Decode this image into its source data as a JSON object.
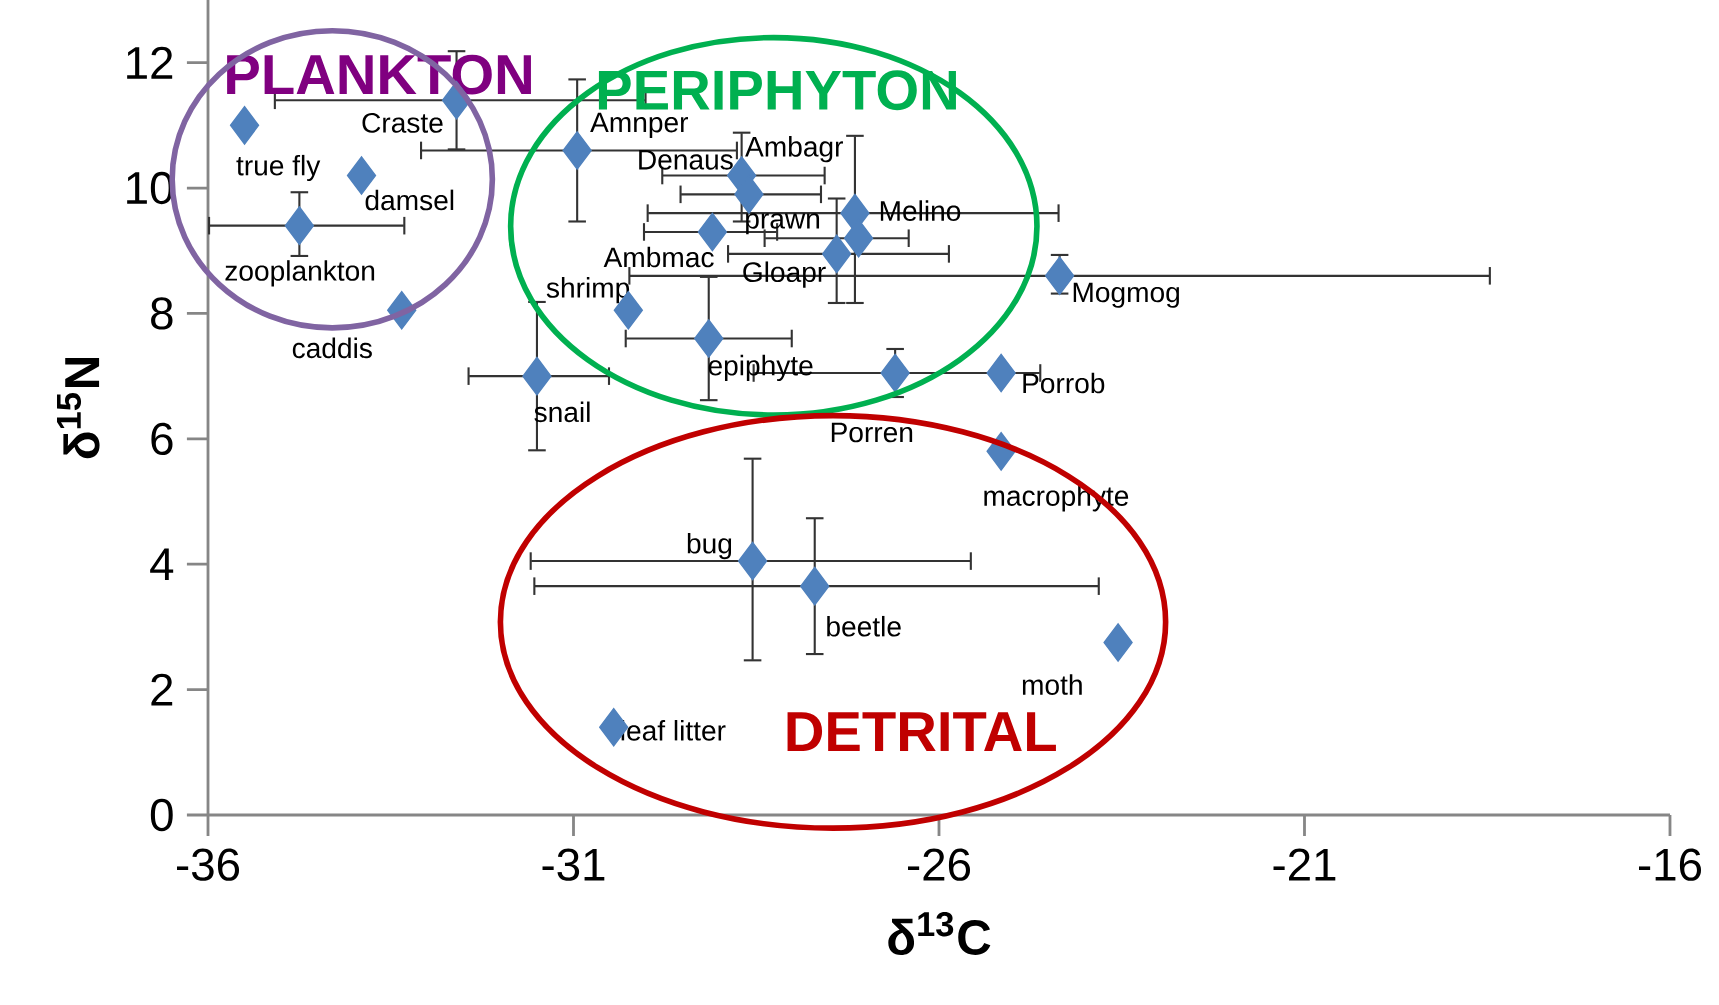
{
  "chart_data": {
    "type": "scatter",
    "xlabel": "δ$^{13}$C",
    "ylabel": "δ$^{15}$N",
    "xlim": [
      -36,
      -16
    ],
    "xticks": [
      -36,
      -31,
      -26,
      -21,
      -16
    ],
    "ylim": [
      0,
      13
    ],
    "yticks": [
      0,
      2,
      4,
      6,
      8,
      10,
      12
    ],
    "marker": "diamond",
    "series": [
      {
        "color": "#4f81bd",
        "x": [
          -35.5,
          -32.6,
          -33.9,
          -34.75,
          -33.35,
          -30.95,
          -28.7,
          -28.6,
          -29.1,
          -27.15,
          -27.1,
          -27.4,
          -24.35,
          -30.25,
          -29.15,
          -31.5,
          -26.6,
          -25.15,
          -25.15,
          -28.55,
          -27.7,
          -23.55,
          -30.45
        ],
        "values": [
          11.0,
          11.4,
          10.2,
          9.4,
          8.05,
          10.6,
          10.2,
          9.9,
          9.3,
          9.6,
          9.2,
          8.95,
          8.6,
          8.05,
          7.6,
          7.0,
          7.05,
          7.05,
          5.8,
          4.05,
          3.65,
          2.75,
          1.4
        ],
        "xerrors": [
          null,
          [
            -35.1,
            -30.0
          ],
          null,
          [
            -36.0,
            -33.3
          ],
          null,
          [
            -33.1,
            -28.75
          ],
          [
            -29.8,
            -27.55
          ],
          [
            -29.55,
            -27.6
          ],
          [
            -30.05,
            -28.2
          ],
          [
            -30.0,
            -24.35
          ],
          [
            -28.4,
            -26.4
          ],
          [
            -28.9,
            -25.85
          ],
          [
            -30.25,
            -18.45
          ],
          null,
          [
            -30.3,
            -28.0
          ],
          [
            -32.45,
            -30.5
          ],
          [
            -28.55,
            -24.6
          ],
          null,
          null,
          [
            -31.6,
            -25.55
          ],
          [
            -31.55,
            -23.8
          ],
          null,
          null
        ],
        "errors": [
          null,
          [
            10.6,
            12.2
          ],
          null,
          [
            8.9,
            9.95
          ],
          null,
          [
            9.45,
            11.75
          ],
          [
            9.45,
            10.9
          ],
          null,
          null,
          [
            8.15,
            10.85
          ],
          null,
          [
            8.15,
            9.85
          ],
          [
            8.3,
            8.95
          ],
          null,
          [
            6.6,
            8.6
          ],
          [
            5.8,
            8.2
          ],
          [
            6.65,
            7.45
          ],
          null,
          null,
          [
            2.45,
            5.7
          ],
          [
            2.55,
            4.75
          ],
          null,
          null
        ]
      }
    ],
    "annotations": [
      "PLANKTON",
      "PERIPHYTON",
      "DETRITAL",
      {
        "text": "true fly",
        "x": -35.5,
        "y": 11.0
      },
      {
        "text": "Craste",
        "x": -32.6,
        "y": 11.4
      },
      {
        "text": "Amnper",
        "x": -30.95,
        "y": 10.6
      },
      {
        "text": "Ambagr",
        "x": -28.7,
        "y": 10.2
      },
      {
        "text": "Denaus",
        "x": -28.6,
        "y": 9.9
      },
      {
        "text": "prawn",
        "x": -27.1,
        "y": 9.2
      },
      {
        "text": "Melino",
        "x": -27.15,
        "y": 9.6
      },
      {
        "text": "Ambmac",
        "x": -29.1,
        "y": 9.3
      },
      {
        "text": "Gloapr",
        "x": -27.4,
        "y": 8.95
      },
      {
        "text": "damsel",
        "x": -33.9,
        "y": 10.2
      },
      {
        "text": "zooplankton",
        "x": -34.75,
        "y": 9.4
      },
      {
        "text": "caddis",
        "x": -33.35,
        "y": 8.05
      },
      {
        "text": "shrimp",
        "x": -30.25,
        "y": 8.05
      },
      {
        "text": "Mogmog",
        "x": -24.35,
        "y": 8.6
      },
      {
        "text": "epiphyte",
        "x": -29.15,
        "y": 7.6
      },
      {
        "text": "snail",
        "x": -31.5,
        "y": 7.0
      },
      {
        "text": "Porren",
        "x": -26.6,
        "y": 7.05
      },
      {
        "text": "Porrob",
        "x": -25.15,
        "y": 7.05
      },
      {
        "text": "macrophyte",
        "x": -25.15,
        "y": 5.8
      },
      {
        "text": "bug",
        "x": -28.55,
        "y": 4.05
      },
      {
        "text": "beetle",
        "x": -27.7,
        "y": 3.65
      },
      {
        "text": "moth",
        "x": -23.55,
        "y": 2.75
      },
      {
        "text": "leaf litter",
        "x": -30.45,
        "y": 1.4
      }
    ]
  }
}
